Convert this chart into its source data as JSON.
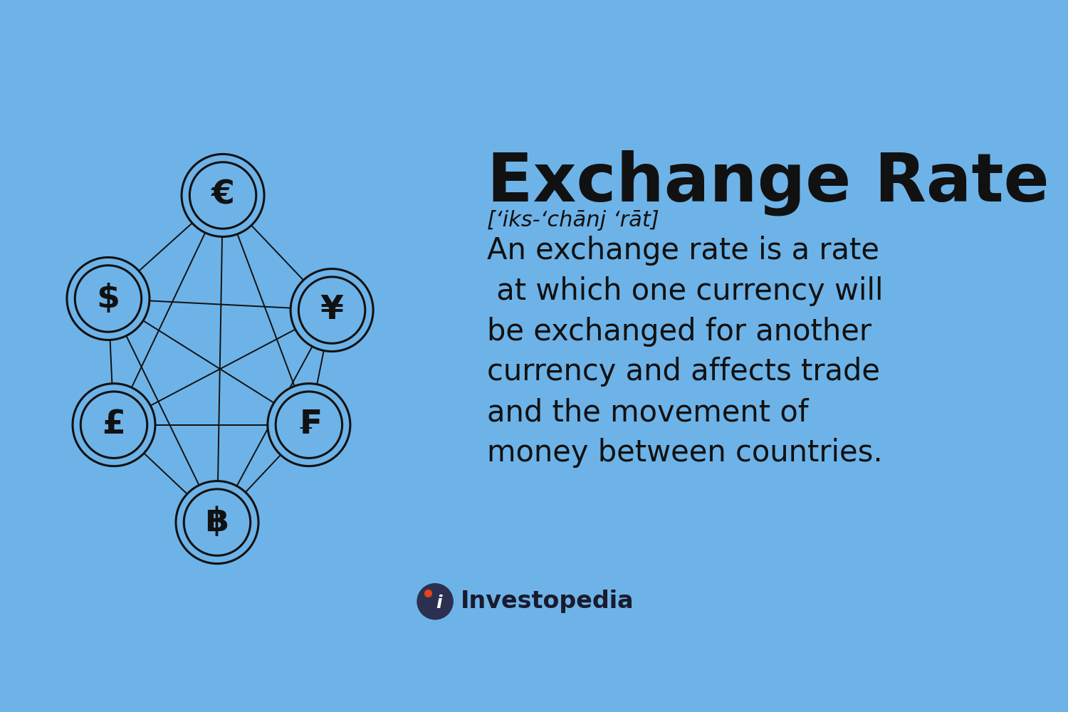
{
  "background_color": "#6db3e8",
  "title": "Exchange Rate",
  "title_fontsize": 68,
  "title_fontweight": "bold",
  "pronunciation": "[‘iks-‘chānj ‘rāt]",
  "pronunciation_fontsize": 22,
  "pronunciation_style": "italic",
  "description": "An exchange rate is a rate\n at which one currency will\nbe exchanged for another\ncurrency and affects trade\nand the movement of\nmoney between countries.",
  "description_fontsize": 30,
  "text_color": "#111111",
  "node_bg_color": "#6db3e8",
  "node_edge_color": "#111111",
  "node_edge_width": 2.2,
  "line_color": "#111111",
  "line_width": 1.4,
  "investopedia_text": "Investopedia",
  "investopedia_color": "#1a1a2e",
  "investopedia_fontsize": 24,
  "logo_dark": "#2b3050",
  "logo_orange": "#e8431a"
}
